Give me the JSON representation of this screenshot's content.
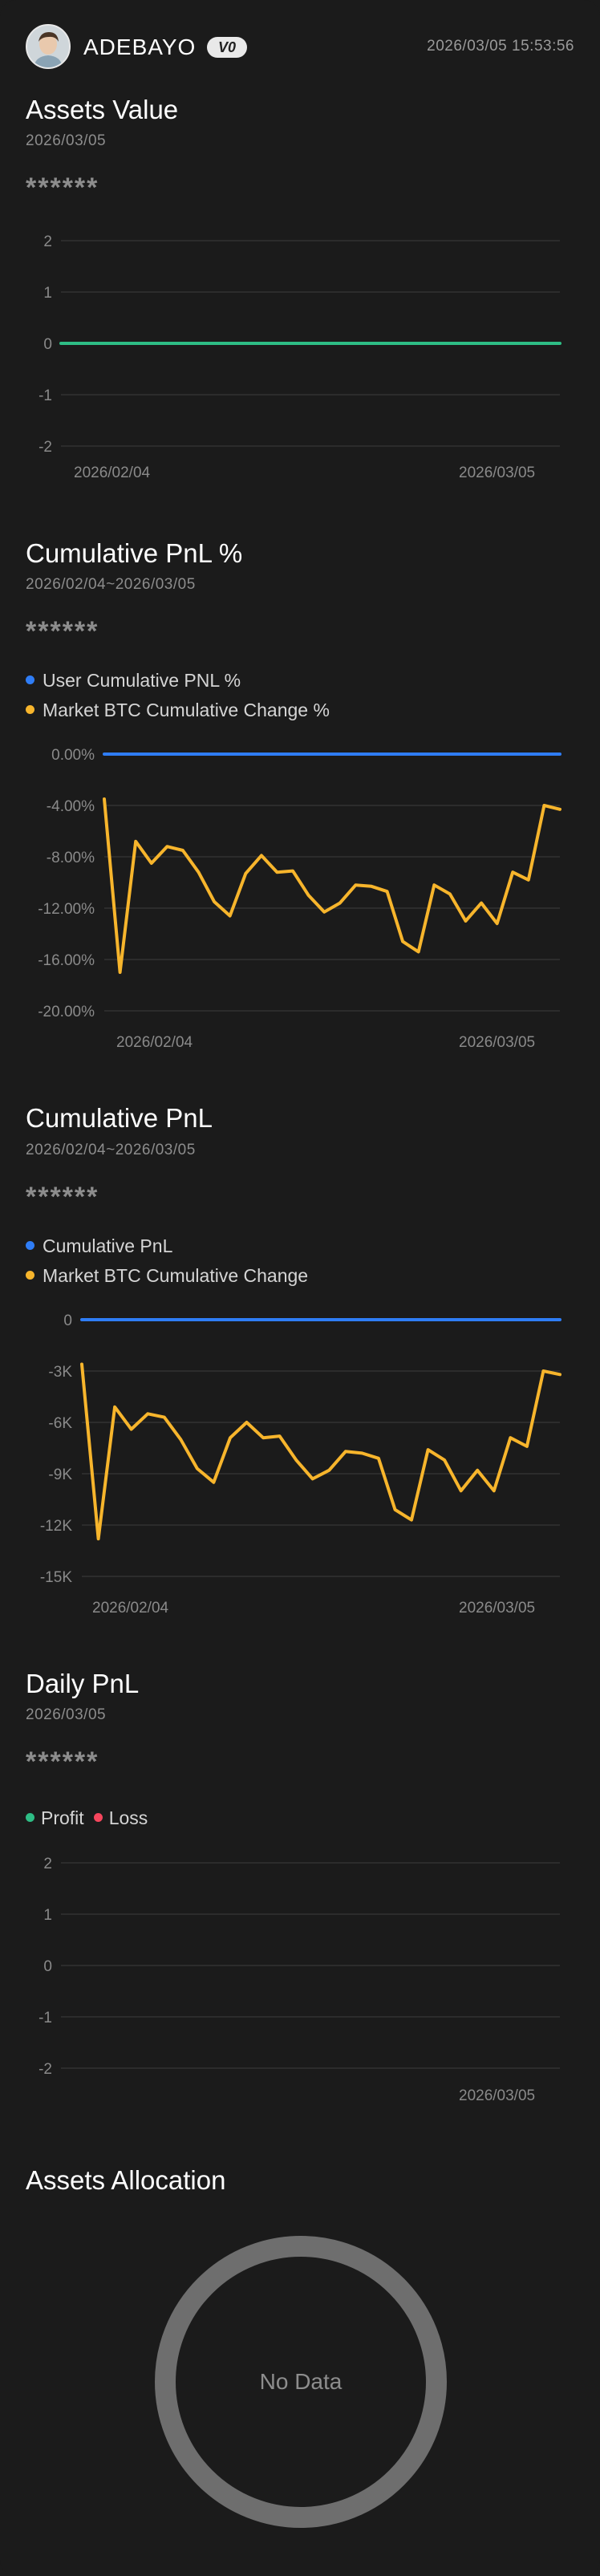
{
  "header": {
    "username": "ADEBAYO",
    "vip_badge": "V0",
    "datetime": "2026/03/05 15:53:56"
  },
  "assets_value": {
    "title": "Assets Value",
    "date": "2026/03/05",
    "masked_value": "******"
  },
  "cum_pnl_pct": {
    "title": "Cumulative PnL %",
    "date_range": "2026/02/04~2026/03/05",
    "masked_value": "******",
    "legend": [
      {
        "label": "User Cumulative PNL %",
        "color": "#2f7df6"
      },
      {
        "label": "Market BTC Cumulative Change %",
        "color": "#f7b52c"
      }
    ]
  },
  "cum_pnl": {
    "title": "Cumulative PnL",
    "date_range": "2026/02/04~2026/03/05",
    "masked_value": "******",
    "legend": [
      {
        "label": "Cumulative PnL",
        "color": "#2f7df6"
      },
      {
        "label": "Market BTC Cumulative Change",
        "color": "#f7b52c"
      }
    ]
  },
  "daily_pnl": {
    "title": "Daily PnL",
    "date": "2026/03/05",
    "masked_value": "******",
    "legend": [
      {
        "label": "Profit",
        "color": "#2ebd85"
      },
      {
        "label": "Loss",
        "color": "#f6465d"
      }
    ]
  },
  "allocation": {
    "title": "Assets Allocation",
    "empty_text": "No Data"
  },
  "chart_data": [
    {
      "type": "line",
      "title": "Assets Value",
      "yticks": [
        "2",
        "1",
        "0",
        "-1",
        "-2"
      ],
      "ylim": [
        -2,
        2
      ],
      "xtick_labels": [
        "2026/02/04",
        "2026/03/05"
      ],
      "series": [
        {
          "color": "#2ebd85",
          "values": [
            0,
            0
          ]
        }
      ],
      "grid": true
    },
    {
      "type": "line",
      "title": "Cumulative PnL %",
      "yticks": [
        "0.00%",
        "-4.00%",
        "-8.00%",
        "-12.00%",
        "-16.00%",
        "-20.00%"
      ],
      "ylim": [
        -20,
        0
      ],
      "xtick_labels": [
        "2026/02/04",
        "2026/03/05"
      ],
      "series": [
        {
          "name": "User Cumulative PNL %",
          "color": "#2f7df6",
          "values": [
            0,
            0
          ]
        },
        {
          "name": "Market BTC Cumulative Change %",
          "color": "#f7b52c",
          "values": [
            -3.5,
            -17.0,
            -6.8,
            -8.5,
            -7.2,
            -7.5,
            -9.2,
            -11.5,
            -12.6,
            -9.3,
            -7.9,
            -9.2,
            -9.1,
            -11.0,
            -12.3,
            -11.6,
            -10.2,
            -10.3,
            -10.7,
            -14.6,
            -15.4,
            -10.2,
            -10.9,
            -13.0,
            -11.6,
            -13.2,
            -9.2,
            -9.8,
            -4.0,
            -4.3
          ]
        }
      ],
      "grid": true
    },
    {
      "type": "line",
      "title": "Cumulative PnL",
      "yticks": [
        "0",
        "-3K",
        "-6K",
        "-9K",
        "-12K",
        "-15K"
      ],
      "ylim": [
        -15000,
        0
      ],
      "xtick_labels": [
        "2026/02/04",
        "2026/03/05"
      ],
      "series": [
        {
          "name": "Cumulative PnL",
          "color": "#2f7df6",
          "values": [
            0,
            0
          ]
        },
        {
          "name": "Market BTC Cumulative Change",
          "color": "#f7b52c",
          "values": [
            -2600,
            -12800,
            -5100,
            -6400,
            -5500,
            -5700,
            -7000,
            -8700,
            -9500,
            -6900,
            -6000,
            -6900,
            -6800,
            -8200,
            -9300,
            -8800,
            -7700,
            -7800,
            -8100,
            -11100,
            -11700,
            -7600,
            -8200,
            -10000,
            -8800,
            -10000,
            -6900,
            -7400,
            -3000,
            -3200
          ]
        }
      ],
      "grid": true
    },
    {
      "type": "bar",
      "title": "Daily PnL",
      "yticks": [
        "2",
        "1",
        "0",
        "-1",
        "-2"
      ],
      "ylim": [
        -2,
        2
      ],
      "xtick_labels": [
        "2026/03/05"
      ],
      "series": [
        {
          "name": "Profit",
          "color": "#2ebd85",
          "values": []
        },
        {
          "name": "Loss",
          "color": "#f6465d",
          "values": []
        }
      ],
      "grid": true
    }
  ]
}
